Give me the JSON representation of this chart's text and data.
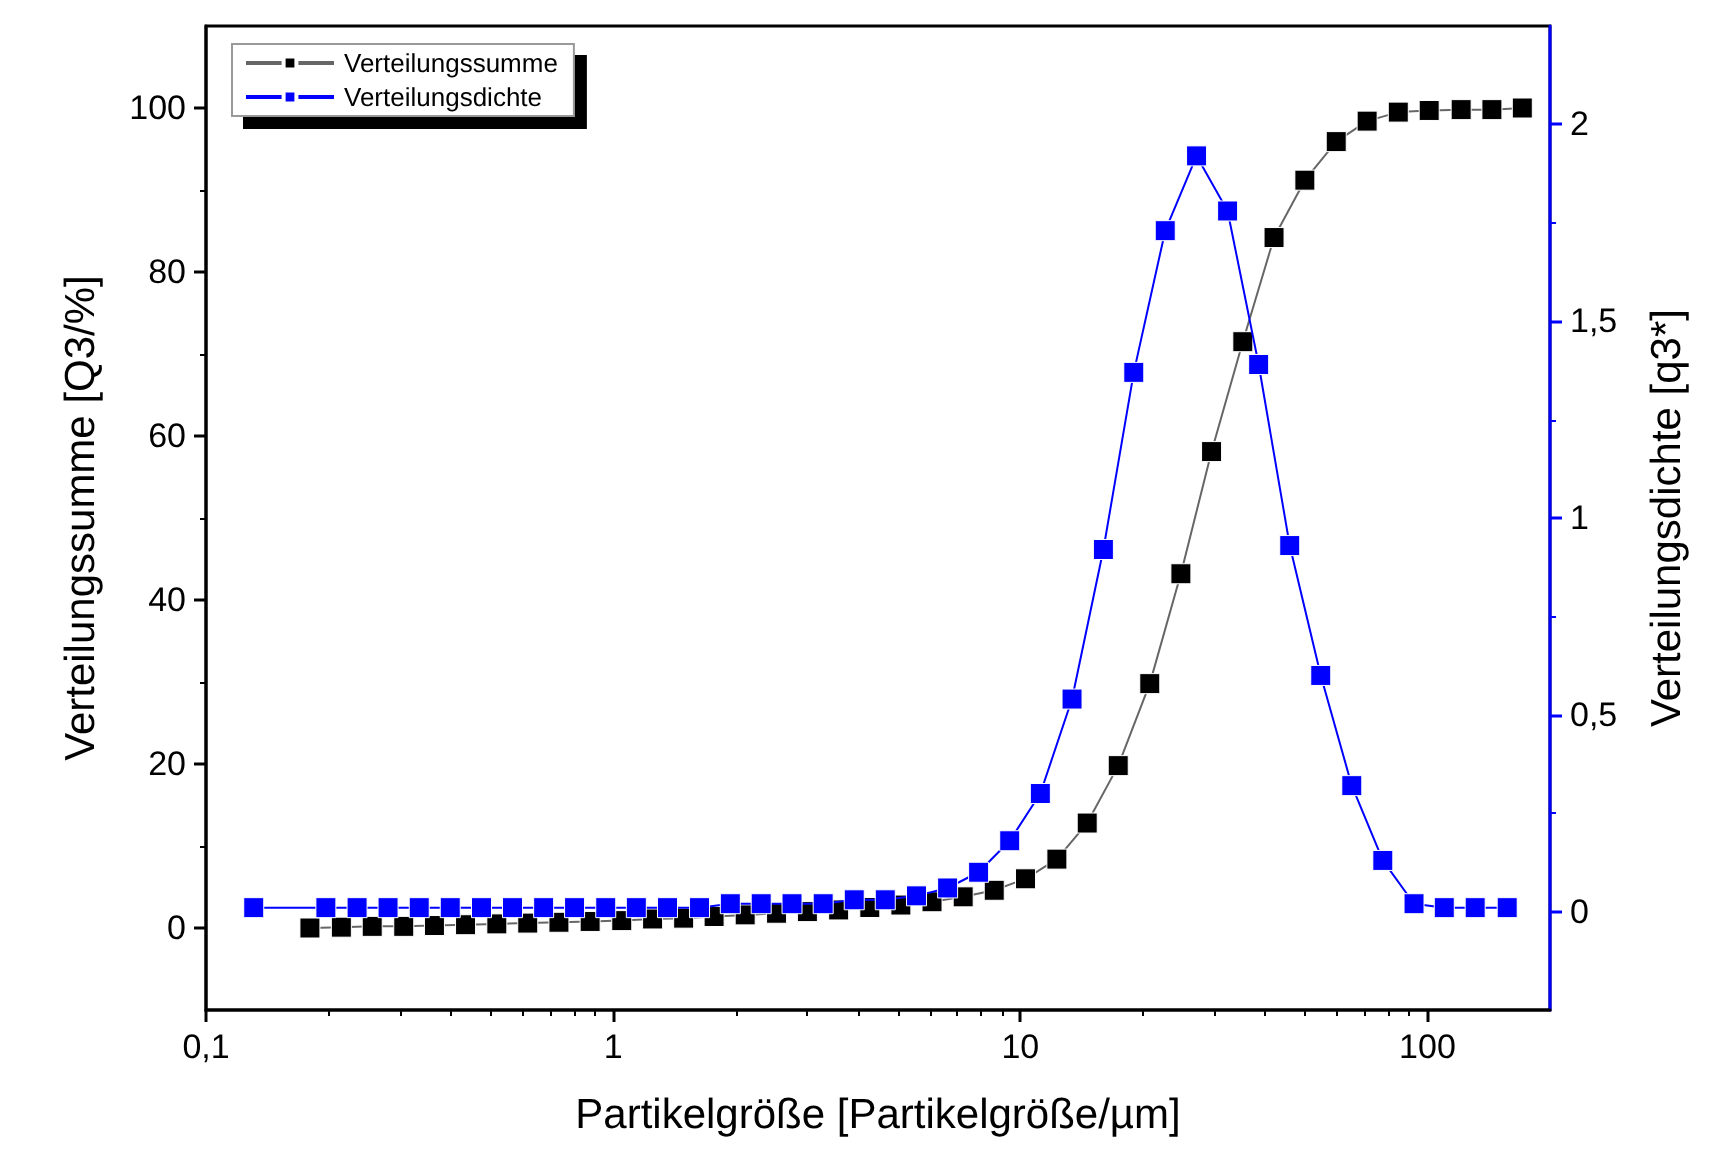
{
  "chart_data": {
    "type": "line",
    "xlabel": "Partikelgröße [Partikelgröße/µm]",
    "ylabel": "Verteilungssumme [Q3/%]",
    "y2label": "Verteilungsdichte [q3*]",
    "log": "x",
    "grid": false,
    "legend": "top left",
    "marker": "square",
    "line_style": "solid",
    "xlim": [
      0.1,
      200
    ],
    "xticks": [
      {
        "value": 0.1,
        "label": "0,1"
      },
      1,
      10,
      100
    ],
    "ylim": [
      -10,
      110
    ],
    "yticks": [
      0,
      20,
      40,
      60,
      80,
      100
    ],
    "y2lim": [
      -0.25,
      2.25
    ],
    "y2ticks": [
      0,
      {
        "value": 0.5,
        "label": "0,5"
      },
      1,
      {
        "value": 1.5,
        "label": "1,5"
      },
      2
    ],
    "series": [
      {
        "name": "Verteilungssumme",
        "color": "#000000",
        "x": [
          0.18,
          0.215,
          0.256,
          0.306,
          0.364,
          0.434,
          0.518,
          0.617,
          0.736,
          0.878,
          1.05,
          1.25,
          1.49,
          1.77,
          2.11,
          2.52,
          3.0,
          3.58,
          4.27,
          5.09,
          6.07,
          7.24,
          8.63,
          10.3,
          12.3,
          14.6,
          17.4,
          20.8,
          24.8,
          29.5,
          35.2,
          42.0,
          50.0,
          59.7,
          71.1,
          84.8,
          101,
          121,
          144,
          171
        ],
        "values": [
          0,
          0.1,
          0.2,
          0.2,
          0.3,
          0.4,
          0.5,
          0.6,
          0.7,
          0.8,
          0.9,
          1.1,
          1.2,
          1.4,
          1.6,
          1.8,
          2.0,
          2.2,
          2.5,
          2.8,
          3.2,
          3.8,
          4.6,
          6.0,
          8.4,
          12.8,
          19.8,
          29.8,
          43.2,
          58.1,
          71.5,
          84.2,
          91.2,
          95.9,
          98.4,
          99.5,
          99.7,
          99.8,
          99.8,
          100
        ]
      },
      {
        "name": "Verteilungsdichte",
        "color": "#0000ff",
        "axis": "y2",
        "x": [
          0.131,
          0.197,
          0.235,
          0.28,
          0.334,
          0.398,
          0.475,
          0.566,
          0.675,
          0.804,
          0.959,
          1.14,
          1.36,
          1.63,
          1.94,
          2.31,
          2.75,
          3.28,
          3.91,
          4.66,
          5.56,
          6.63,
          7.9,
          9.42,
          11.2,
          13.4,
          16.0,
          19.0,
          22.7,
          27.1,
          32.3,
          38.5,
          45.9,
          54.7,
          65.2,
          77.7,
          92.7,
          110,
          131,
          157
        ],
        "values": [
          0.01,
          0.01,
          0.01,
          0.01,
          0.01,
          0.01,
          0.01,
          0.01,
          0.01,
          0.01,
          0.01,
          0.01,
          0.01,
          0.01,
          0.02,
          0.02,
          0.02,
          0.02,
          0.03,
          0.03,
          0.04,
          0.06,
          0.1,
          0.18,
          0.3,
          0.54,
          0.92,
          1.37,
          1.73,
          1.92,
          1.78,
          1.39,
          0.93,
          0.6,
          0.32,
          0.13,
          0.02,
          0.01,
          0.01,
          0.01
        ]
      }
    ]
  }
}
